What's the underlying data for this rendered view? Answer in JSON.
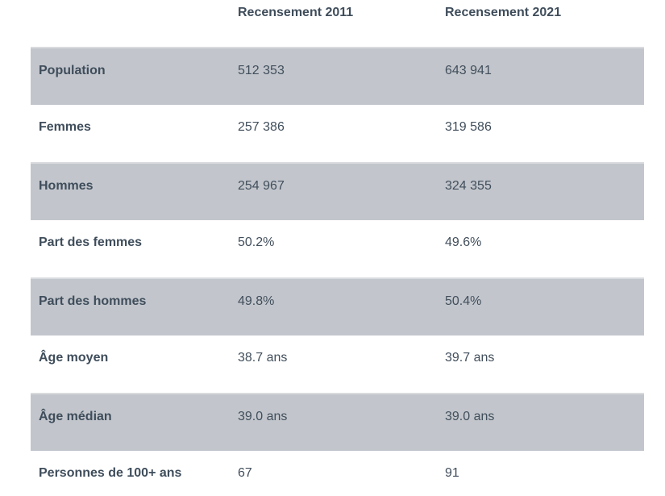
{
  "table": {
    "columns": [
      {
        "label": ""
      },
      {
        "label": "Recensement 2011"
      },
      {
        "label": "Recensement 2021"
      }
    ],
    "rows": [
      {
        "label": "Population",
        "v2011": "512 353",
        "v2021": "643 941"
      },
      {
        "label": "Femmes",
        "v2011": "257 386",
        "v2021": "319 586"
      },
      {
        "label": "Hommes",
        "v2011": "254 967",
        "v2021": "324 355"
      },
      {
        "label": "Part des femmes",
        "v2011": "50.2%",
        "v2021": "49.6%"
      },
      {
        "label": "Part des hommes",
        "v2011": "49.8%",
        "v2021": "50.4%"
      },
      {
        "label": "Âge moyen",
        "v2011": "38.7 ans",
        "v2021": "39.7 ans"
      },
      {
        "label": "Âge médian",
        "v2011": "39.0 ans",
        "v2021": "39.0 ans"
      },
      {
        "label": "Personnes de 100+ ans",
        "v2011": "67",
        "v2021": "91"
      }
    ],
    "colors": {
      "row_alt_bg": "#c2c6cc",
      "row_alt_border_top": "#d9dbde",
      "text": "#3f4d5b",
      "value_text": "#414e5b",
      "page_bg": "#ffffff"
    }
  }
}
